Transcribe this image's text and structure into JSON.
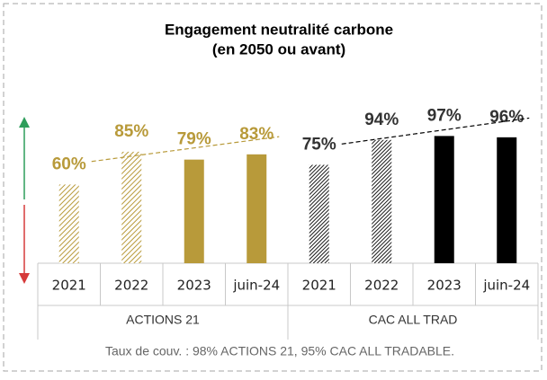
{
  "chart_data": {
    "type": "bar",
    "title": "Engagement neutralité carbone",
    "subtitle": "(en 2050 ou avant)",
    "ylim": [
      0,
      100
    ],
    "series": [
      {
        "name": "ACTIONS 21",
        "color": "#b89a3a",
        "categories": [
          "2021",
          "2022",
          "2023",
          "juin-24"
        ],
        "values": [
          60,
          85,
          79,
          83
        ],
        "value_labels": [
          "60%",
          "85%",
          "79%",
          "83%"
        ],
        "hatched": [
          true,
          true,
          false,
          false
        ]
      },
      {
        "name": "CAC ALL TRAD",
        "color": "#000000",
        "label_color": "#333333",
        "categories": [
          "2021",
          "2022",
          "2023",
          "juin-24"
        ],
        "values": [
          75,
          94,
          97,
          96
        ],
        "value_labels": [
          "75%",
          "94%",
          "97%",
          "96%"
        ],
        "hatched": [
          true,
          true,
          false,
          false
        ]
      }
    ],
    "trendline": true,
    "footnote": "Taux de couv. : 98% ACTIONS 21, 95% CAC ALL TRADABLE."
  }
}
